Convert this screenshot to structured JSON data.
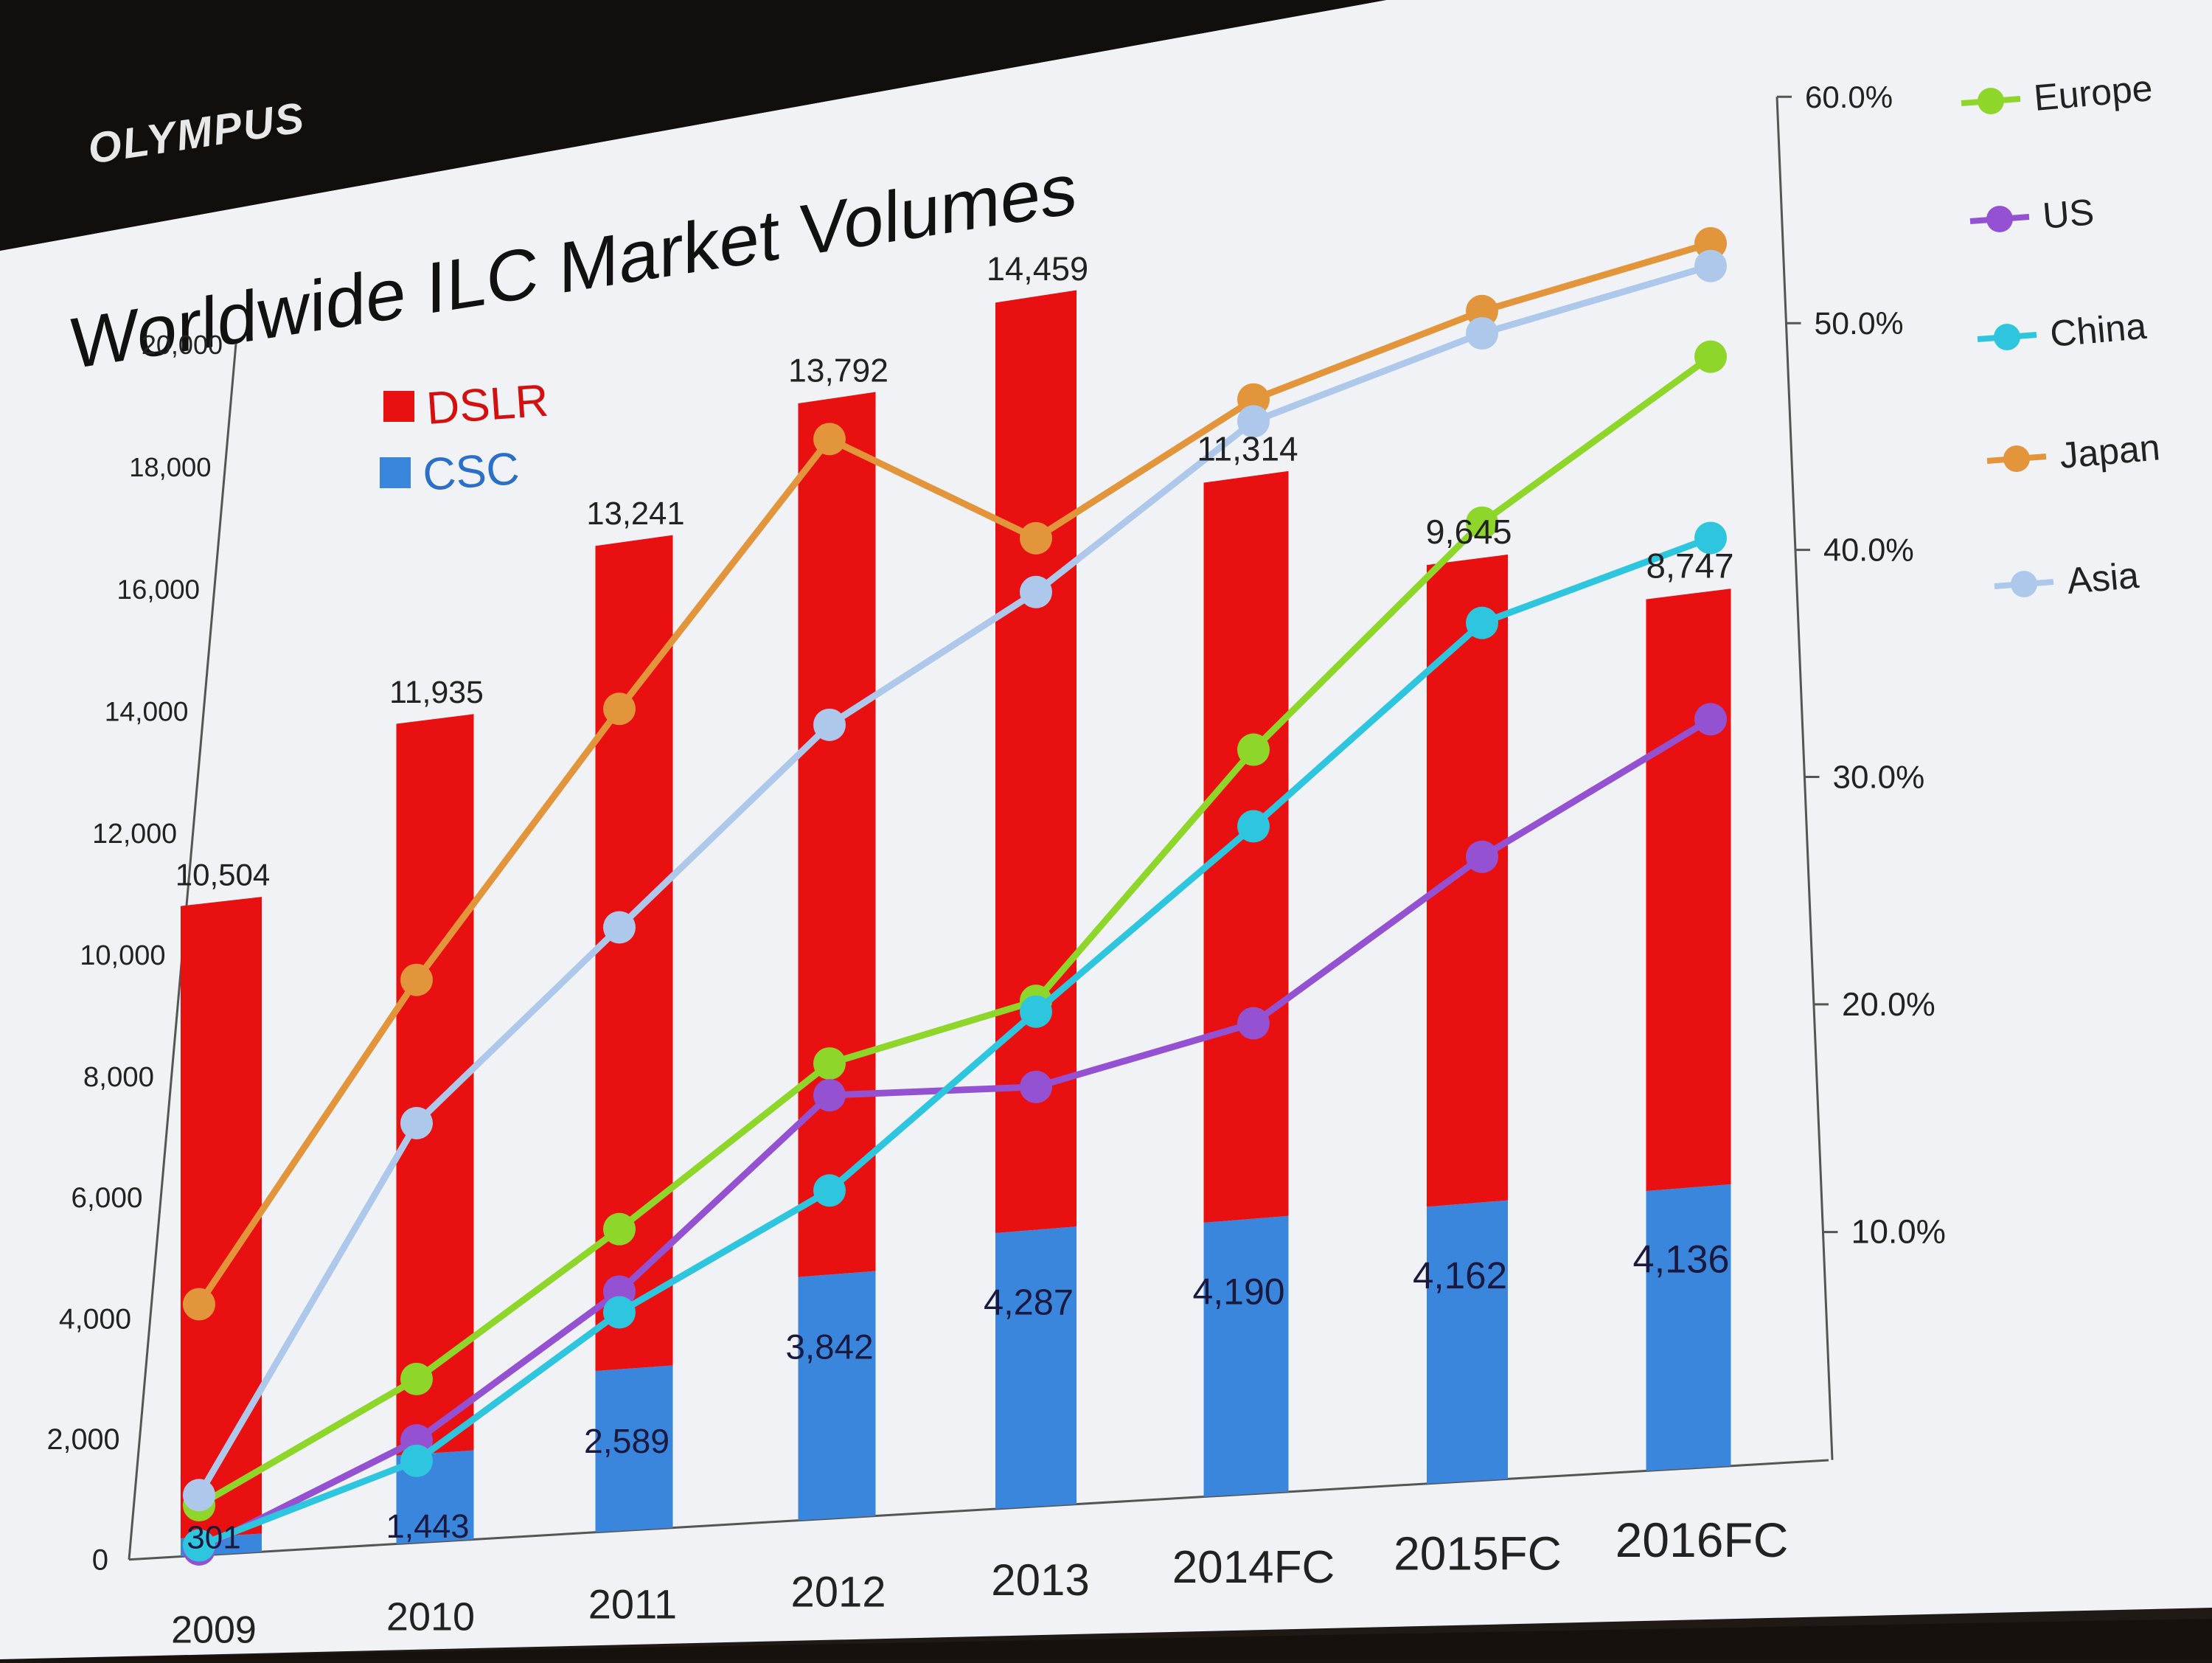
{
  "brand": "OLYMPUS",
  "colors": {
    "dslr": "#e81010",
    "csc": "#3a86dc",
    "europe": "#8fd62a",
    "us": "#9452d2",
    "china": "#2ec6de",
    "japan": "#e2953a",
    "asia": "#adc8ea",
    "axis": "#555555",
    "slide_bg": "#f1f2f5"
  },
  "chart_data": {
    "type": "bar",
    "title": "Worldwide ILC Market Volumes",
    "categories": [
      "2009",
      "2010",
      "2011",
      "2012",
      "2013",
      "2014FC",
      "2015FC",
      "2016FC"
    ],
    "y_ticks": [
      "0",
      "2,000",
      "4,000",
      "6,000",
      "8,000",
      "10,000",
      "12,000",
      "14,000",
      "16,000",
      "18,000",
      "20,000"
    ],
    "ylim": [
      0,
      20000
    ],
    "y2_ticks": [
      "10.0%",
      "20.0%",
      "30.0%",
      "40.0%",
      "50.0%",
      "60.0%"
    ],
    "y2lim": [
      0,
      60
    ],
    "stacked": true,
    "bar_series": [
      {
        "name": "CSC",
        "values": [
          301,
          1443,
          2589,
          3842,
          4287,
          4190,
          4162,
          4136
        ],
        "labels": [
          "301",
          "1,443",
          "2,589",
          "3,842",
          "4,287",
          "4,190",
          "4,162",
          "4,136"
        ]
      },
      {
        "name": "DSLR",
        "values": [
          10504,
          11935,
          13241,
          13792,
          14459,
          11314,
          9645,
          8747
        ],
        "labels": [
          "10,504",
          "11,935",
          "13,241",
          "13,792",
          "14,459",
          "11,314",
          "9,645",
          "8,747"
        ]
      }
    ],
    "line_series": [
      {
        "name": "Europe",
        "values": [
          2.5,
          8,
          14.5,
          21.5,
          23.5,
          34,
          43,
          49
        ]
      },
      {
        "name": "US",
        "values": [
          0.3,
          5,
          11.5,
          20,
          19.5,
          21.5,
          28,
          33
        ]
      },
      {
        "name": "China",
        "values": [
          0.5,
          4,
          10.5,
          15.5,
          23,
          30.5,
          38.5,
          41
        ]
      },
      {
        "name": "Japan",
        "values": [
          12.5,
          27.5,
          39.5,
          51,
          45,
          50,
          52.5,
          54
        ]
      },
      {
        "name": "Asia",
        "values": [
          3,
          20.5,
          29,
          37.5,
          42.5,
          49,
          51.5,
          53
        ]
      }
    ],
    "bar_legend": [
      "DSLR",
      "CSC"
    ],
    "line_legend": [
      "Europe",
      "US",
      "China",
      "Japan",
      "Asia"
    ],
    "grid": false,
    "legend_position": "top-left (bars), right (lines)"
  }
}
